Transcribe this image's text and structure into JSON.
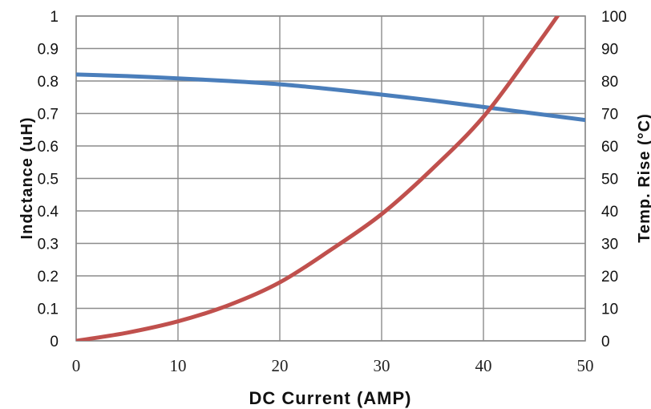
{
  "chart_data": {
    "type": "line",
    "xlabel": "DC Current (AMP)",
    "ylabel_left": "Indctance (uH)",
    "ylabel_right": "Temp. Rise (°C)",
    "xlim": [
      0,
      50
    ],
    "ylim_left": [
      0,
      1
    ],
    "ylim_right": [
      0,
      100
    ],
    "x_ticks": [
      "0",
      "10",
      "20",
      "30",
      "40",
      "50"
    ],
    "y_left_ticks": [
      "0",
      "0.1",
      "0.2",
      "0.3",
      "0.4",
      "0.5",
      "0.6",
      "0.7",
      "0.8",
      "0.9",
      "1"
    ],
    "y_right_ticks": [
      "0",
      "10",
      "20",
      "30",
      "40",
      "50",
      "60",
      "70",
      "80",
      "90",
      "100"
    ],
    "grid": true,
    "series": [
      {
        "axis": "left",
        "color": "#4a7ebb",
        "x": [
          0,
          5,
          10,
          15,
          20,
          25,
          30,
          35,
          40,
          45,
          50
        ],
        "y": [
          0.82,
          0.815,
          0.808,
          0.8,
          0.79,
          0.775,
          0.758,
          0.74,
          0.72,
          0.7,
          0.68
        ]
      },
      {
        "axis": "right",
        "color": "#c0504d",
        "x": [
          0,
          5,
          10,
          15,
          20,
          25,
          30,
          35,
          40,
          45,
          47.5
        ],
        "y": [
          0,
          2.5,
          6,
          11,
          18,
          28,
          39,
          53,
          69,
          90,
          101
        ]
      }
    ]
  }
}
